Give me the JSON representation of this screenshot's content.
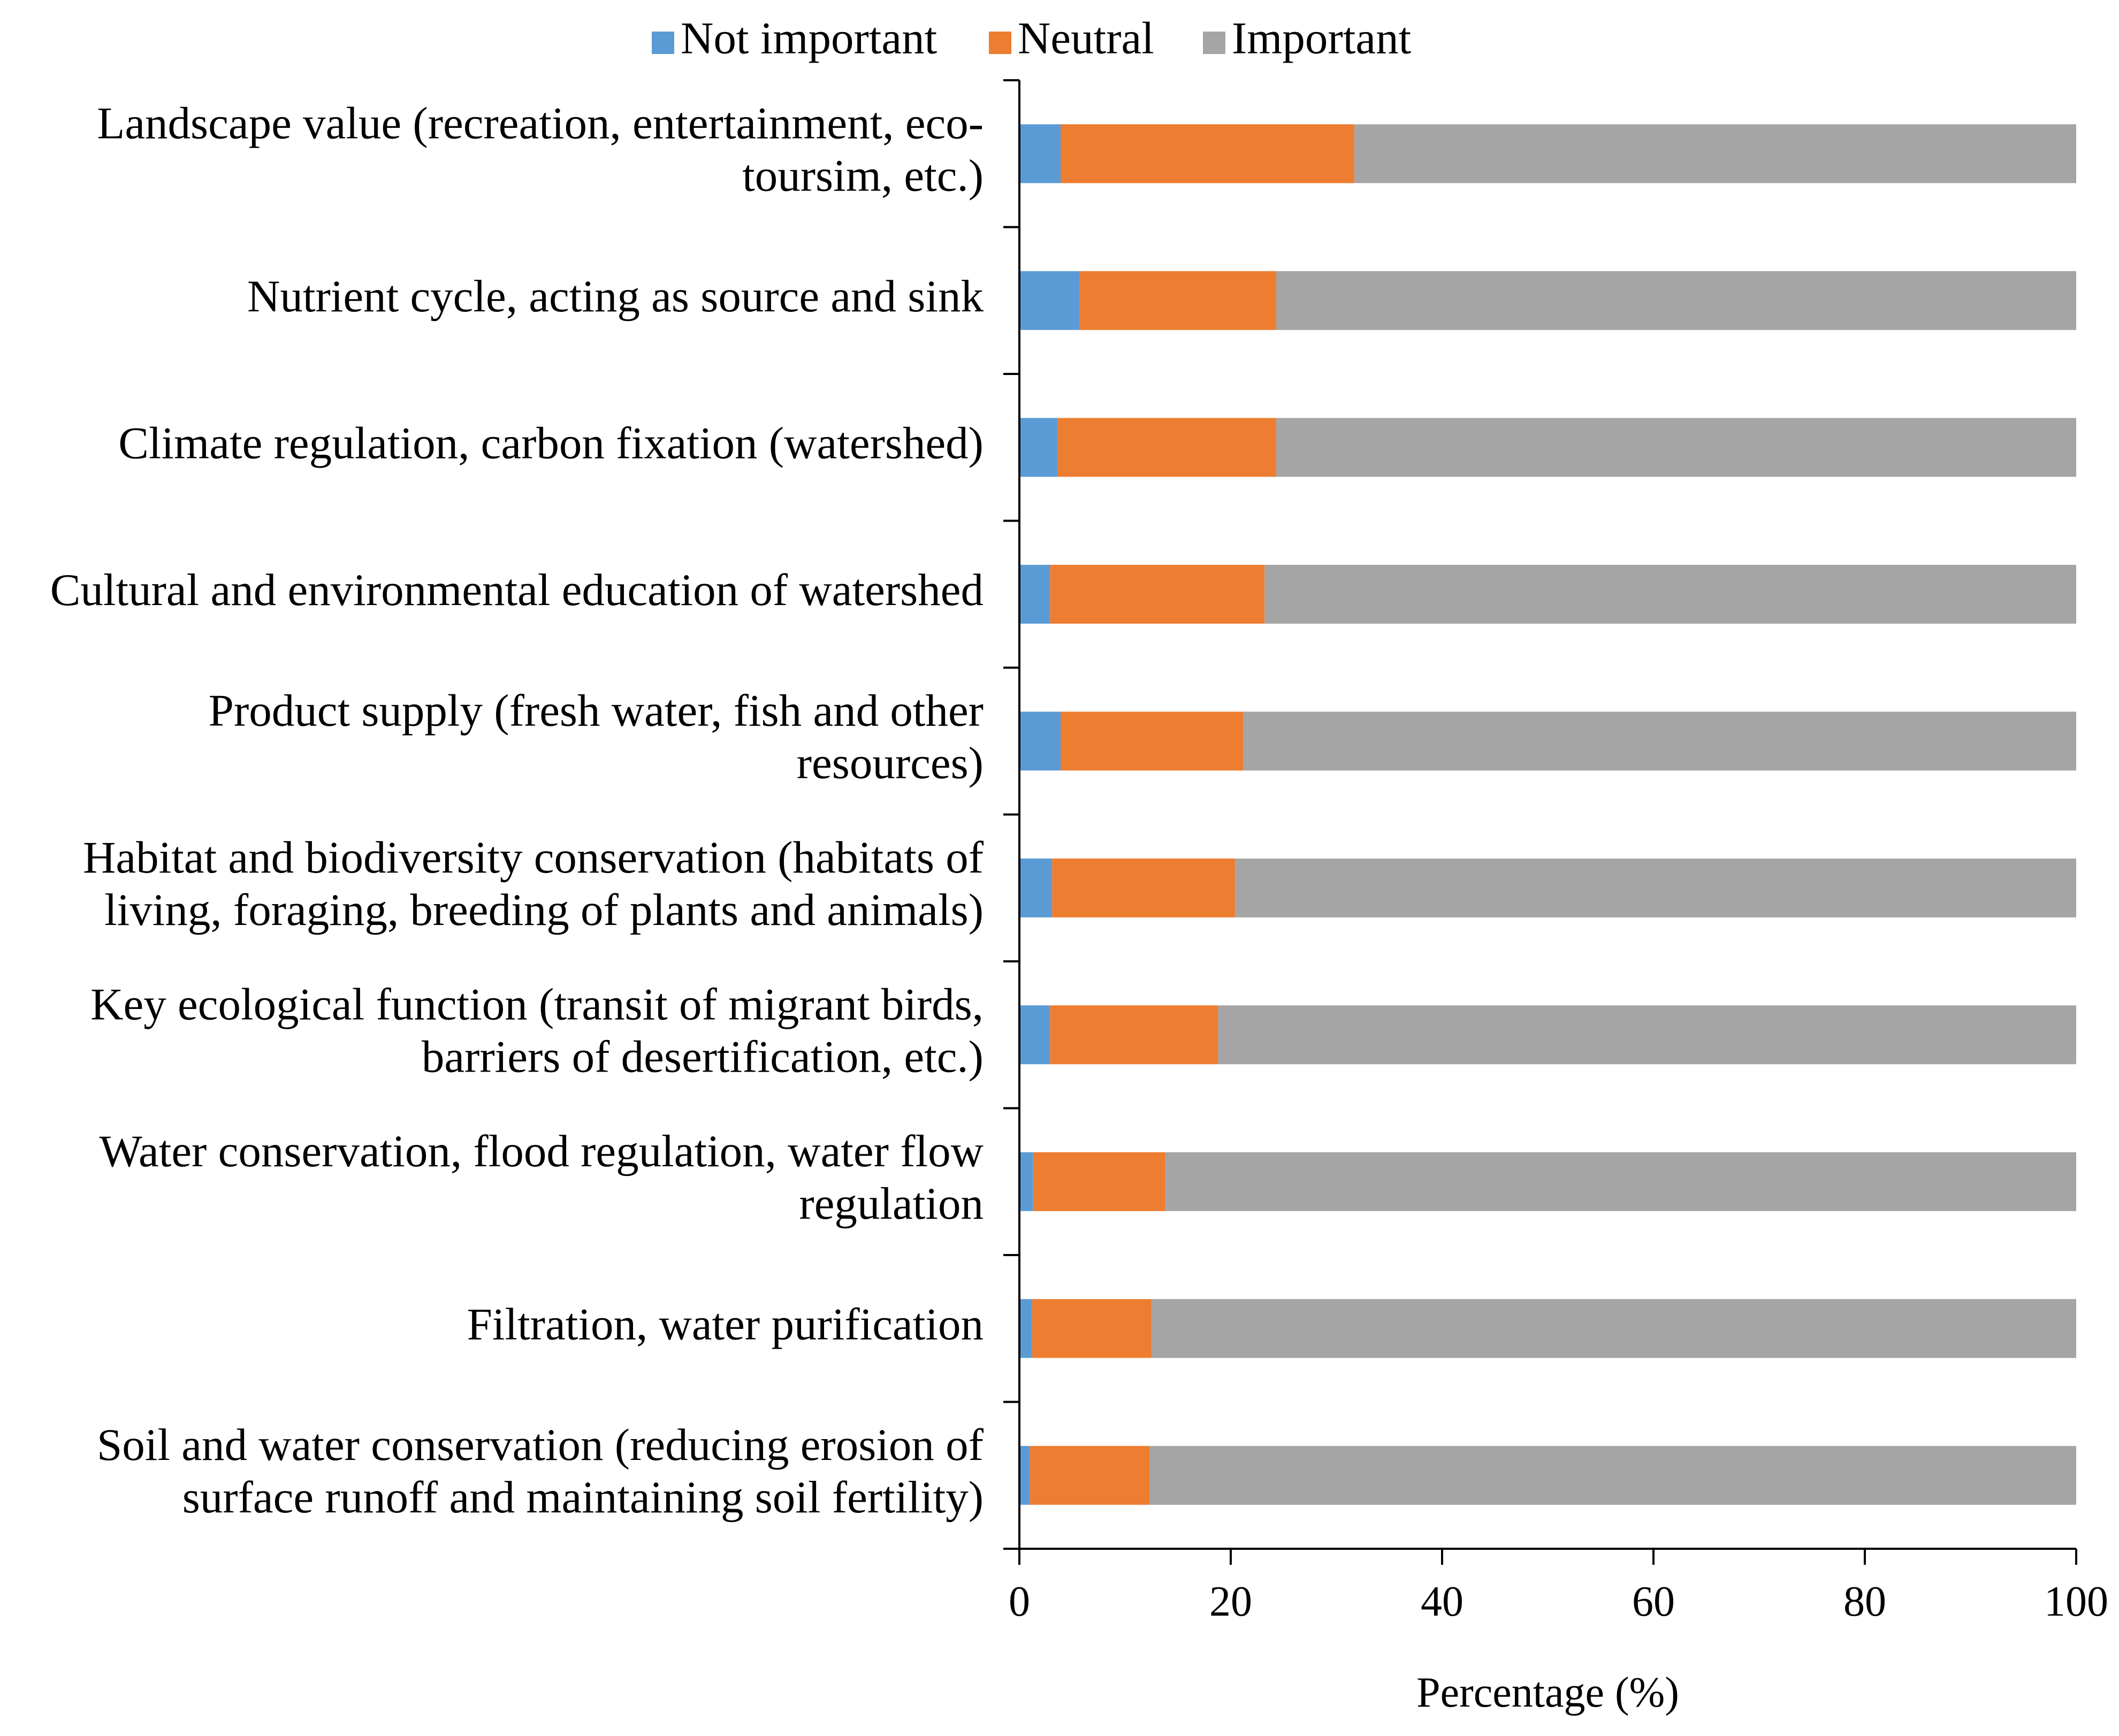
{
  "chart_data": {
    "type": "bar",
    "orientation": "horizontal",
    "stacked": true,
    "title": "",
    "xlabel": "Percentage (%)",
    "ylabel": "",
    "xlim": [
      0,
      100
    ],
    "xticks": [
      "0",
      "20",
      "40",
      "60",
      "80",
      "100"
    ],
    "legend_position": "top",
    "categories": [
      [
        "Landscape value  (recreation, entertainment, eco-",
        "toursim, etc.)"
      ],
      [
        "Nutrient cycle, acting as source and sink"
      ],
      [
        "Climate regulation, carbon fixation (watershed)"
      ],
      [
        "Cultural and environmental education of watershed"
      ],
      [
        "Product supply (fresh water, fish and other",
        "resources)"
      ],
      [
        "Habitat and biodiversity conservation (habitats of",
        "living, foraging, breeding of plants and animals)"
      ],
      [
        "Key ecological function (transit of migrant birds,",
        "barriers of desertification, etc.)"
      ],
      [
        "Water conservation, flood regulation, water flow",
        "regulation"
      ],
      [
        "Filtration, water purification"
      ],
      [
        "Soil and water conservation (reducing erosion of",
        "surface runoff and maintaining soil fertility)"
      ]
    ],
    "series": [
      {
        "name": "Not important",
        "color": "#5B9BD5",
        "values": [
          3.9,
          5.7,
          3.6,
          2.9,
          3.9,
          3.1,
          2.9,
          1.3,
          1.2,
          1.0
        ]
      },
      {
        "name": "Neutral",
        "color": "#ED7D31",
        "values": [
          27.8,
          18.6,
          20.7,
          20.3,
          17.3,
          17.3,
          15.9,
          12.5,
          11.3,
          11.3
        ]
      },
      {
        "name": "Important",
        "color": "#A5A5A5",
        "values": [
          68.3,
          75.7,
          75.7,
          76.8,
          78.8,
          79.6,
          81.2,
          86.2,
          87.5,
          87.7
        ]
      }
    ]
  }
}
